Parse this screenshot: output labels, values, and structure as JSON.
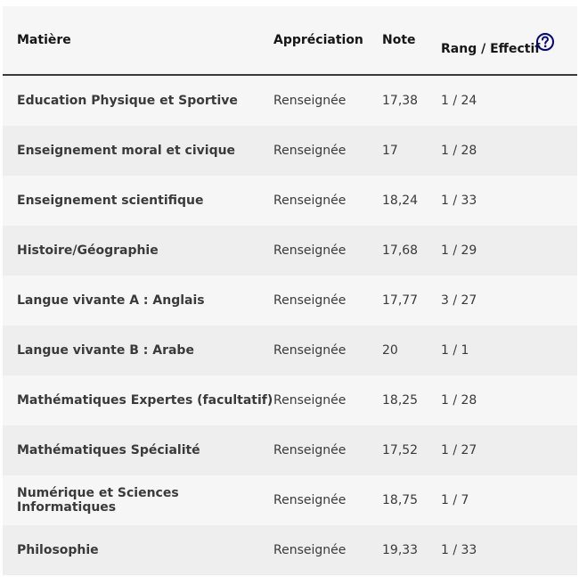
{
  "table": {
    "headers": [
      "Matière",
      "Appréciation",
      "Note",
      "Rang / Effectif"
    ],
    "rows": [
      [
        "Education Physique et Sportive",
        "Renseignée",
        "17,38",
        "1 / 24"
      ],
      [
        "Enseignement moral et civique",
        "Renseignée",
        "17",
        "1 / 28"
      ],
      [
        "Enseignement scientifique",
        "Renseignée",
        "18,24",
        "1 / 33"
      ],
      [
        "Histoire/Géographie",
        "Renseignée",
        "17,68",
        "1 / 29"
      ],
      [
        "Langue vivante A : Anglais",
        "Renseignée",
        "17,77",
        "3 / 27"
      ],
      [
        "Langue vivante B : Arabe",
        "Renseignée",
        "20",
        "1 / 1"
      ],
      [
        "Mathématiques Expertes (facultatif)",
        "Renseignée",
        "18,25",
        "1 / 28"
      ],
      [
        "Mathématiques Spécialité",
        "Renseignée",
        "17,52",
        "1 / 27"
      ],
      [
        "Numérique et Sciences Informatiques",
        "Renseignée",
        "18,75",
        "1 / 7"
      ],
      [
        "Philosophie",
        "Renseignée",
        "19,33",
        "1 / 33"
      ]
    ]
  }
}
